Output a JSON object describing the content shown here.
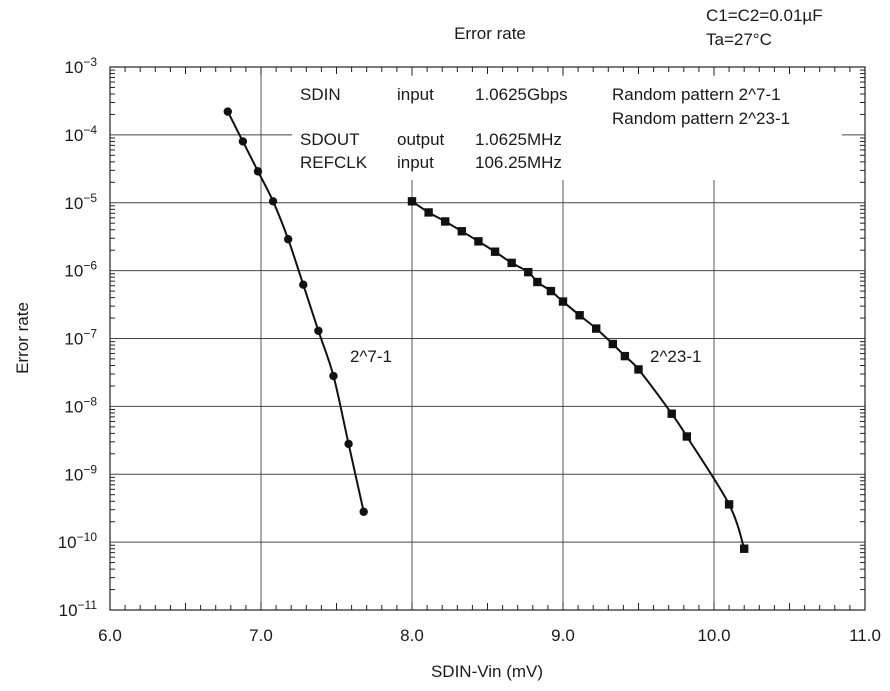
{
  "chart_data": {
    "type": "line",
    "title": "Error rate",
    "conditions": [
      "C1=C2=0.01µF",
      "Ta=27°C"
    ],
    "xlabel": "SDIN-Vin (mV)",
    "ylabel": "Error rate",
    "xlim": [
      6.0,
      11.0
    ],
    "ylim_exponent": [
      -11,
      -3
    ],
    "log_y": true,
    "grid": true,
    "x_ticks": [
      "6.0",
      "7.0",
      "8.0",
      "9.0",
      "10.0",
      "11.0"
    ],
    "y_ticks": [
      {
        "base": "10",
        "exp": "−3",
        "value": -3
      },
      {
        "base": "10",
        "exp": "−4",
        "value": -4
      },
      {
        "base": "10",
        "exp": "−5",
        "value": -5
      },
      {
        "base": "10",
        "exp": "−6",
        "value": -6
      },
      {
        "base": "10",
        "exp": "−7",
        "value": -7
      },
      {
        "base": "10",
        "exp": "−8",
        "value": -8
      },
      {
        "base": "10",
        "exp": "−9",
        "value": -9
      },
      {
        "base": "10",
        "exp": "−10",
        "value": -10
      },
      {
        "base": "10",
        "exp": "−11",
        "value": -11
      }
    ],
    "info_table": [
      {
        "signal": "SDIN",
        "dir": "input",
        "rate": "1.0625Gbps"
      },
      {
        "signal": "SDOUT",
        "dir": "output",
        "rate": "1.0625MHz"
      },
      {
        "signal": "REFCLK",
        "dir": "input",
        "rate": "106.25MHz"
      }
    ],
    "patterns": [
      "Random pattern 2^7-1",
      "Random pattern 2^23-1"
    ],
    "series": [
      {
        "name": "2^7-1",
        "marker": "circle",
        "x": [
          6.78,
          6.88,
          6.98,
          7.08,
          7.18,
          7.28,
          7.38,
          7.48,
          7.58,
          7.68
        ],
        "y": [
          0.00022,
          8e-05,
          2.9e-05,
          1.05e-05,
          2.9e-06,
          6.2e-07,
          1.3e-07,
          2.8e-08,
          2.8e-09,
          2.8e-10
        ]
      },
      {
        "name": "2^23-1",
        "marker": "square",
        "x": [
          8.0,
          8.11,
          8.22,
          8.33,
          8.44,
          8.55,
          8.66,
          8.77,
          8.83,
          8.92,
          9.0,
          9.11,
          9.22,
          9.33,
          9.41,
          9.5,
          9.72,
          9.82,
          10.1,
          10.2
        ],
        "y": [
          1.05e-05,
          7.2e-06,
          5.3e-06,
          3.8e-06,
          2.7e-06,
          1.9e-06,
          1.3e-06,
          9.5e-07,
          6.8e-07,
          5e-07,
          3.5e-07,
          2.2e-07,
          1.4e-07,
          8.3e-08,
          5.5e-08,
          3.5e-08,
          7.8e-09,
          3.6e-09,
          3.6e-10,
          8e-11
        ]
      }
    ]
  }
}
